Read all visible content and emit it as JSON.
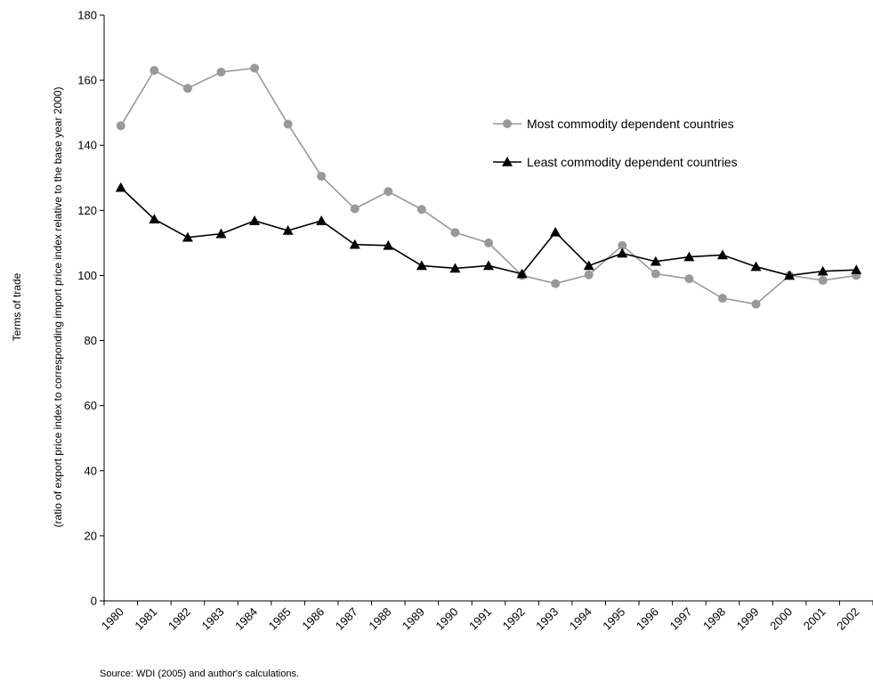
{
  "chart_data": {
    "type": "line",
    "title": "",
    "xlabel": "",
    "ylabel_line1": "Terms of trade",
    "ylabel_line2": "(ratio of export price index to  corresponding import price index relative to the base year 2000)",
    "ylim": [
      0,
      180
    ],
    "yticks": [
      0,
      20,
      40,
      60,
      80,
      100,
      120,
      140,
      160,
      180
    ],
    "grid": false,
    "legend_position": "top-right",
    "categories": [
      "1980",
      "1981",
      "1982",
      "1983",
      "1984",
      "1985",
      "1986",
      "1987",
      "1988",
      "1989",
      "1990",
      "1991",
      "1992",
      "1993",
      "1994",
      "1995",
      "1996",
      "1997",
      "1998",
      "1999",
      "2000",
      "2001",
      "2002"
    ],
    "series": [
      {
        "name": "Most commodity dependent countries",
        "marker": "circle",
        "color": "#999999",
        "values": [
          146,
          163,
          157.5,
          162.5,
          163.7,
          146.5,
          130.5,
          120.5,
          125.8,
          120.3,
          113.2,
          110,
          100,
          97.5,
          100.2,
          109.2,
          100.5,
          99,
          93,
          91.2,
          100,
          98.5,
          100
        ]
      },
      {
        "name": "Least commodity dependent countries",
        "marker": "triangle",
        "color": "#000000",
        "values": [
          127,
          117.3,
          111.7,
          112.8,
          116.8,
          113.8,
          116.8,
          109.5,
          109.2,
          103,
          102.2,
          103,
          100.5,
          113.3,
          103,
          106.8,
          104.3,
          105.7,
          106.3,
          102.7,
          100,
          101.3,
          101.7
        ]
      }
    ]
  },
  "footer": {
    "source": "Source: WDI (2005) and author's calculations."
  }
}
